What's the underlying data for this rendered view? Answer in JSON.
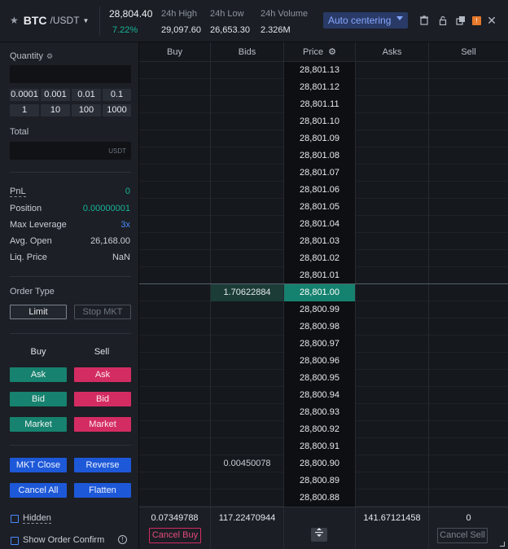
{
  "header": {
    "base": "BTC",
    "quote": "/USDT",
    "last_price": "28,804.40",
    "change": "7.22%",
    "high_label": "24h High",
    "high_value": "29,097.60",
    "low_label": "24h Low",
    "low_value": "26,653.30",
    "volume_label": "24h Volume",
    "volume_value": "2.326M",
    "auto_centering": "Auto centering",
    "badge": "!"
  },
  "panel": {
    "quantity_label": "Quantity",
    "quantity_value": "",
    "quick_qty": [
      "0.0001",
      "0.001",
      "0.01",
      "0.1"
    ],
    "quick_mult": [
      "1",
      "10",
      "100",
      "1000"
    ],
    "total_label": "Total",
    "total_unit": "USDT",
    "pnl_label": "PnL",
    "pnl_value": "0",
    "position_label": "Position",
    "position_value": "0.00000001",
    "leverage_label": "Max Leverage",
    "leverage_value": "3x",
    "avg_label": "Avg. Open",
    "avg_value": "26,168.00",
    "liq_label": "Liq. Price",
    "liq_value": "NaN",
    "order_type_label": "Order Type",
    "limit_label": "Limit",
    "stop_label": "Stop MKT",
    "buy_header": "Buy",
    "sell_header": "Sell",
    "ask_label": "Ask",
    "bid_label": "Bid",
    "market_label": "Market",
    "mkt_close": "MKT Close",
    "reverse": "Reverse",
    "cancel_all": "Cancel All",
    "flatten": "Flatten",
    "hidden_label": "Hidden",
    "confirm_label": "Show Order Confirm"
  },
  "ladder": {
    "columns": [
      "Buy",
      "Bids",
      "Price",
      "Asks",
      "Sell"
    ],
    "rows": [
      {
        "price": "28,801.13",
        "bid": ""
      },
      {
        "price": "28,801.12",
        "bid": ""
      },
      {
        "price": "28,801.11",
        "bid": ""
      },
      {
        "price": "28,801.10",
        "bid": ""
      },
      {
        "price": "28,801.09",
        "bid": ""
      },
      {
        "price": "28,801.08",
        "bid": ""
      },
      {
        "price": "28,801.07",
        "bid": ""
      },
      {
        "price": "28,801.06",
        "bid": ""
      },
      {
        "price": "28,801.05",
        "bid": ""
      },
      {
        "price": "28,801.04",
        "bid": ""
      },
      {
        "price": "28,801.03",
        "bid": ""
      },
      {
        "price": "28,801.02",
        "bid": ""
      },
      {
        "price": "28,801.01",
        "bid": ""
      },
      {
        "price": "28,801.00",
        "bid": "1.70622884",
        "highlight": true
      },
      {
        "price": "28,800.99",
        "bid": ""
      },
      {
        "price": "28,800.98",
        "bid": ""
      },
      {
        "price": "28,800.97",
        "bid": ""
      },
      {
        "price": "28,800.96",
        "bid": ""
      },
      {
        "price": "28,800.95",
        "bid": ""
      },
      {
        "price": "28,800.94",
        "bid": ""
      },
      {
        "price": "28,800.93",
        "bid": ""
      },
      {
        "price": "28,800.92",
        "bid": ""
      },
      {
        "price": "28,800.91",
        "bid": ""
      },
      {
        "price": "28,800.90",
        "bid": "0.00450078"
      },
      {
        "price": "28,800.89",
        "bid": ""
      },
      {
        "price": "28,800.88",
        "bid": ""
      }
    ],
    "footer": {
      "buy_total": "0.07349788",
      "bids_total": "117.22470944",
      "asks_total": "141.67121458",
      "sell_total": "0",
      "cancel_buy": "Cancel Buy",
      "cancel_sell": "Cancel Sell"
    }
  },
  "colors": {
    "accent": "#4a89ff",
    "buy_green": "#16826f",
    "sell_red": "#d32c63",
    "action_blue": "#1d58d8"
  }
}
